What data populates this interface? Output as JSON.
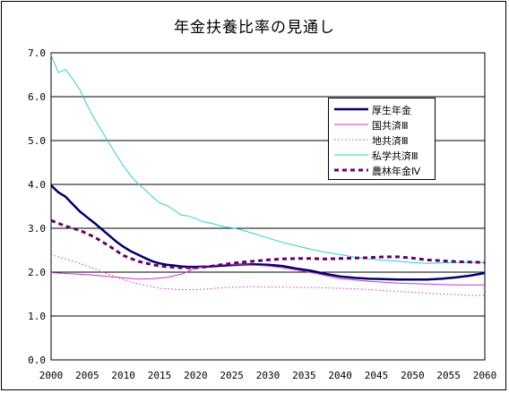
{
  "chart_data": {
    "type": "line",
    "title": "年金扶養比率の見通し",
    "xlabel": "",
    "ylabel": "",
    "xlim": [
      2000,
      2060
    ],
    "ylim": [
      0.0,
      7.0
    ],
    "x_ticks": [
      "2000",
      "2005",
      "2010",
      "2015",
      "2020",
      "2025",
      "2030",
      "2035",
      "2040",
      "2045",
      "2050",
      "2055",
      "2060"
    ],
    "y_ticks": [
      "0.0",
      "1.0",
      "2.0",
      "3.0",
      "4.0",
      "5.0",
      "6.0",
      "7.0"
    ],
    "grid": "horizontal",
    "legend_position": "right",
    "series": [
      {
        "name": "厚生年金",
        "color": "#000066",
        "dash": "solid",
        "width": 2.5,
        "x": [
          2000,
          2001,
          2002,
          2003,
          2004,
          2005,
          2006,
          2007,
          2008,
          2009,
          2010,
          2011,
          2012,
          2013,
          2014,
          2015,
          2016,
          2017,
          2018,
          2019,
          2020,
          2022,
          2024,
          2026,
          2028,
          2030,
          2032,
          2034,
          2036,
          2038,
          2040,
          2042,
          2044,
          2046,
          2048,
          2050,
          2052,
          2054,
          2056,
          2058,
          2060
        ],
        "y": [
          3.98,
          3.82,
          3.72,
          3.55,
          3.38,
          3.25,
          3.12,
          2.98,
          2.84,
          2.7,
          2.58,
          2.48,
          2.4,
          2.32,
          2.25,
          2.2,
          2.17,
          2.15,
          2.13,
          2.12,
          2.12,
          2.13,
          2.15,
          2.17,
          2.18,
          2.17,
          2.14,
          2.08,
          2.03,
          1.96,
          1.9,
          1.87,
          1.85,
          1.84,
          1.83,
          1.83,
          1.83,
          1.85,
          1.88,
          1.92,
          1.98
        ]
      },
      {
        "name": "国共済Ⅲ",
        "color": "#cc33cc",
        "dash": "solid",
        "width": 1,
        "x": [
          2000,
          2002,
          2004,
          2006,
          2008,
          2010,
          2012,
          2014,
          2016,
          2018,
          2019,
          2020,
          2022,
          2024,
          2026,
          2028,
          2030,
          2032,
          2034,
          2036,
          2038,
          2040,
          2042,
          2044,
          2046,
          2048,
          2050,
          2052,
          2054,
          2056,
          2058,
          2060
        ],
        "y": [
          1.99,
          1.97,
          1.95,
          1.93,
          1.9,
          1.87,
          1.84,
          1.85,
          1.88,
          1.95,
          2.02,
          2.1,
          2.15,
          2.17,
          2.17,
          2.16,
          2.14,
          2.1,
          2.05,
          1.99,
          1.92,
          1.85,
          1.82,
          1.79,
          1.77,
          1.75,
          1.74,
          1.73,
          1.72,
          1.71,
          1.71,
          1.71
        ]
      },
      {
        "name": "地共済Ⅲ",
        "color": "#cc33cc",
        "dash": "dotted",
        "width": 1,
        "x": [
          2000,
          2002,
          2004,
          2006,
          2008,
          2010,
          2012,
          2014,
          2015,
          2016,
          2018,
          2020,
          2022,
          2024,
          2026,
          2028,
          2030,
          2032,
          2034,
          2036,
          2038,
          2040,
          2042,
          2044,
          2046,
          2048,
          2050,
          2052,
          2054,
          2056,
          2058,
          2060
        ],
        "y": [
          2.4,
          2.3,
          2.2,
          2.08,
          1.95,
          1.83,
          1.73,
          1.67,
          1.63,
          1.62,
          1.6,
          1.6,
          1.62,
          1.65,
          1.66,
          1.67,
          1.66,
          1.66,
          1.65,
          1.65,
          1.64,
          1.63,
          1.62,
          1.6,
          1.58,
          1.56,
          1.54,
          1.52,
          1.5,
          1.49,
          1.47,
          1.47
        ]
      },
      {
        "name": "私学共済Ⅲ",
        "color": "#33cccc",
        "dash": "solid",
        "width": 1,
        "x": [
          2000,
          2001,
          2002,
          2003,
          2004,
          2005,
          2006,
          2007,
          2008,
          2009,
          2010,
          2011,
          2012,
          2013,
          2014,
          2015,
          2016,
          2017,
          2018,
          2019,
          2020,
          2021,
          2022,
          2023,
          2024,
          2025,
          2026,
          2028,
          2030,
          2032,
          2034,
          2036,
          2038,
          2040,
          2042,
          2044,
          2046,
          2048,
          2050,
          2052,
          2054,
          2056,
          2058,
          2060
        ],
        "y": [
          6.95,
          6.55,
          6.62,
          6.4,
          6.15,
          5.8,
          5.5,
          5.22,
          4.95,
          4.68,
          4.42,
          4.2,
          4.02,
          3.88,
          3.72,
          3.58,
          3.52,
          3.42,
          3.3,
          3.28,
          3.22,
          3.15,
          3.12,
          3.08,
          3.03,
          3.01,
          2.98,
          2.88,
          2.78,
          2.68,
          2.6,
          2.52,
          2.45,
          2.4,
          2.34,
          2.3,
          2.27,
          2.25,
          2.22,
          2.2,
          2.21,
          2.22,
          2.22,
          2.22
        ]
      },
      {
        "name": "農林年金Ⅳ",
        "color": "#660066",
        "dash": "dashed",
        "width": 3,
        "x": [
          2000,
          2002,
          2004,
          2006,
          2008,
          2010,
          2012,
          2014,
          2016,
          2018,
          2020,
          2022,
          2024,
          2026,
          2028,
          2030,
          2032,
          2034,
          2036,
          2038,
          2040,
          2042,
          2044,
          2046,
          2048,
          2050,
          2052,
          2054,
          2056,
          2058,
          2060
        ],
        "y": [
          3.18,
          3.05,
          2.95,
          2.8,
          2.6,
          2.38,
          2.25,
          2.17,
          2.12,
          2.1,
          2.1,
          2.13,
          2.18,
          2.22,
          2.25,
          2.28,
          2.3,
          2.31,
          2.31,
          2.3,
          2.31,
          2.32,
          2.33,
          2.35,
          2.35,
          2.32,
          2.28,
          2.26,
          2.24,
          2.23,
          2.22
        ]
      }
    ]
  }
}
